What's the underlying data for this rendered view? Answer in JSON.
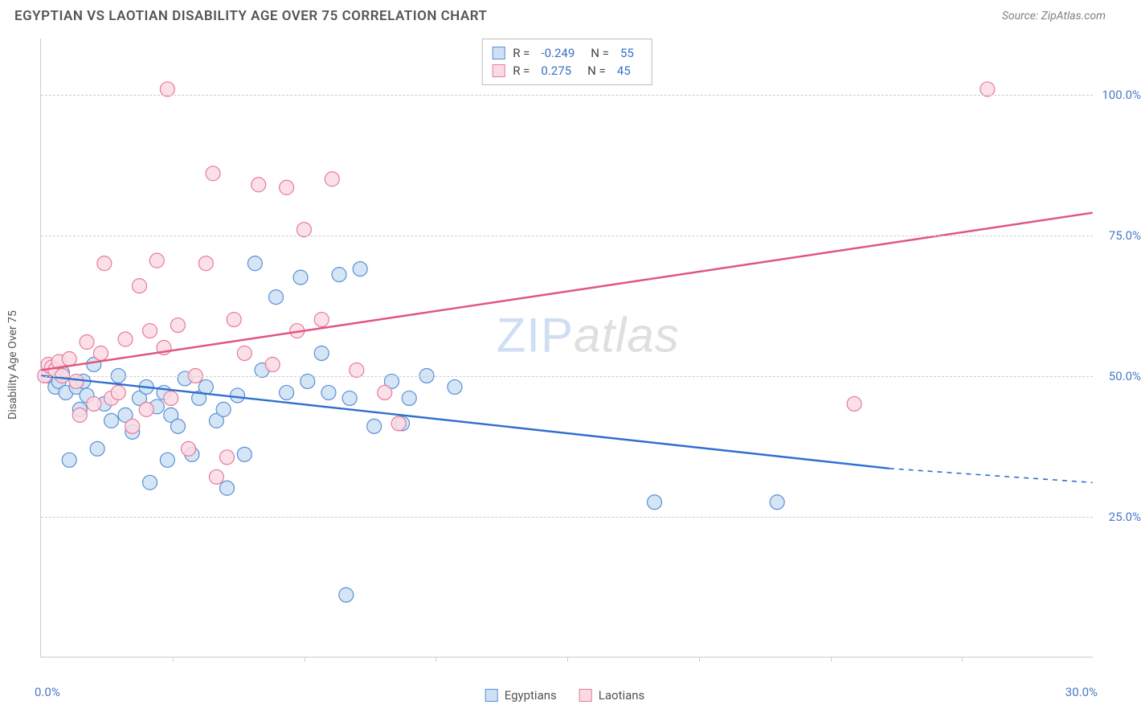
{
  "title": "EGYPTIAN VS LAOTIAN DISABILITY AGE OVER 75 CORRELATION CHART",
  "source": "Source: ZipAtlas.com",
  "watermark_left": "ZIP",
  "watermark_right": "atlas",
  "y_axis_title": "Disability Age Over 75",
  "chart": {
    "type": "scatter",
    "xlim": [
      0,
      30
    ],
    "ylim": [
      0,
      110
    ],
    "x_tick_positions": [
      3.75,
      7.5,
      11.25,
      15,
      18.75,
      22.5,
      26.25
    ],
    "x_label_min": "0.0%",
    "x_label_max": "30.0%",
    "y_gridlines": [
      {
        "value": 25,
        "label": "25.0%"
      },
      {
        "value": 50,
        "label": "50.0%"
      },
      {
        "value": 75,
        "label": "75.0%"
      },
      {
        "value": 100,
        "label": "100.0%"
      }
    ],
    "series": [
      {
        "name": "Egyptians",
        "marker_fill": "#cde0f5",
        "marker_stroke": "#5a8fd6",
        "marker_radius": 9,
        "line_color": "#2f6fd0",
        "R": "-0.249",
        "N": "55",
        "trend": {
          "x1": 0,
          "y1": 50,
          "x2": 24.2,
          "y2": 33.5,
          "dash_to_x": 30,
          "dash_to_y": 31
        },
        "points": [
          [
            0.2,
            50
          ],
          [
            0.3,
            51
          ],
          [
            0.4,
            48
          ],
          [
            0.5,
            49
          ],
          [
            0.6,
            50.5
          ],
          [
            0.7,
            47
          ],
          [
            0.8,
            35
          ],
          [
            1.0,
            48
          ],
          [
            1.1,
            44
          ],
          [
            1.2,
            49
          ],
          [
            1.3,
            46.5
          ],
          [
            1.5,
            52
          ],
          [
            1.6,
            37
          ],
          [
            1.8,
            45
          ],
          [
            2.0,
            42
          ],
          [
            2.2,
            50
          ],
          [
            2.4,
            43
          ],
          [
            2.6,
            40
          ],
          [
            2.8,
            46
          ],
          [
            3.0,
            48
          ],
          [
            3.1,
            31
          ],
          [
            3.3,
            44.5
          ],
          [
            3.5,
            47
          ],
          [
            3.7,
            43
          ],
          [
            3.9,
            41
          ],
          [
            4.1,
            49.5
          ],
          [
            4.3,
            36
          ],
          [
            4.5,
            46
          ],
          [
            4.7,
            48
          ],
          [
            3.6,
            35
          ],
          [
            5.0,
            42
          ],
          [
            5.2,
            44
          ],
          [
            5.3,
            30
          ],
          [
            5.6,
            46.5
          ],
          [
            5.8,
            36
          ],
          [
            6.1,
            70
          ],
          [
            6.3,
            51
          ],
          [
            6.7,
            64
          ],
          [
            7.0,
            47
          ],
          [
            7.4,
            67.5
          ],
          [
            7.6,
            49
          ],
          [
            8.0,
            54
          ],
          [
            8.2,
            47
          ],
          [
            8.5,
            68
          ],
          [
            8.8,
            46
          ],
          [
            9.1,
            69
          ],
          [
            9.5,
            41
          ],
          [
            10.0,
            49
          ],
          [
            10.3,
            41.5
          ],
          [
            10.5,
            46
          ],
          [
            11.0,
            50
          ],
          [
            11.8,
            48
          ],
          [
            8.7,
            11
          ],
          [
            17.5,
            27.5
          ],
          [
            21.0,
            27.5
          ]
        ]
      },
      {
        "name": "Laotians",
        "marker_fill": "#fadbe3",
        "marker_stroke": "#e67a9a",
        "marker_radius": 9,
        "line_color": "#e0567e",
        "R": "0.275",
        "N": "45",
        "trend": {
          "x1": 0,
          "y1": 51,
          "x2": 30,
          "y2": 79
        },
        "points": [
          [
            0.1,
            50
          ],
          [
            0.2,
            52
          ],
          [
            0.3,
            51.5
          ],
          [
            0.4,
            51
          ],
          [
            0.5,
            52.5
          ],
          [
            0.6,
            50
          ],
          [
            0.8,
            53
          ],
          [
            1.0,
            49
          ],
          [
            1.1,
            43
          ],
          [
            1.3,
            56
          ],
          [
            1.5,
            45
          ],
          [
            1.7,
            54
          ],
          [
            1.8,
            70
          ],
          [
            2.0,
            46
          ],
          [
            2.2,
            47
          ],
          [
            2.4,
            56.5
          ],
          [
            2.6,
            41
          ],
          [
            2.8,
            66
          ],
          [
            3.0,
            44
          ],
          [
            3.1,
            58
          ],
          [
            3.3,
            70.5
          ],
          [
            3.5,
            55
          ],
          [
            3.7,
            46
          ],
          [
            3.9,
            59
          ],
          [
            3.6,
            101
          ],
          [
            4.2,
            37
          ],
          [
            4.4,
            50
          ],
          [
            4.7,
            70
          ],
          [
            4.9,
            86
          ],
          [
            5.0,
            32
          ],
          [
            5.3,
            35.5
          ],
          [
            5.5,
            60
          ],
          [
            5.8,
            54
          ],
          [
            6.2,
            84
          ],
          [
            6.6,
            52
          ],
          [
            7.0,
            83.5
          ],
          [
            7.3,
            58
          ],
          [
            7.5,
            76
          ],
          [
            8.0,
            60
          ],
          [
            8.3,
            85
          ],
          [
            9.0,
            51
          ],
          [
            9.8,
            47
          ],
          [
            10.2,
            41.5
          ],
          [
            23.2,
            45
          ],
          [
            27.0,
            101
          ]
        ]
      }
    ],
    "background_color": "#ffffff",
    "grid_color": "#d0d0d0"
  }
}
